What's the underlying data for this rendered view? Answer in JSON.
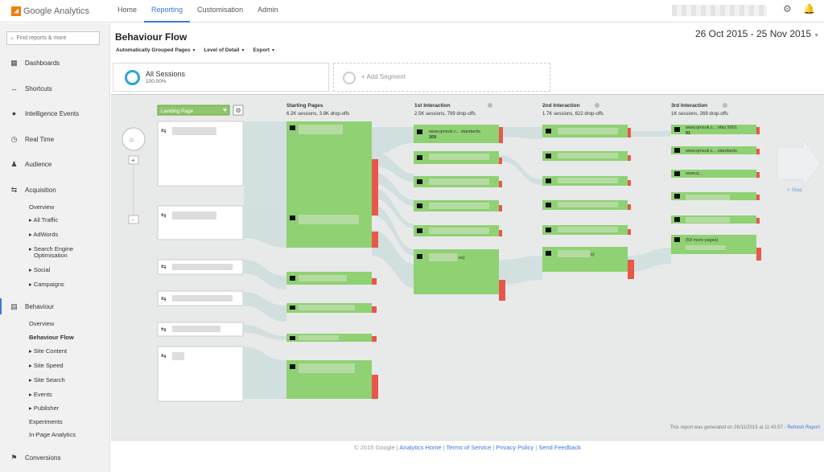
{
  "app": {
    "name": "Google Analytics"
  },
  "topnav": [
    "Home",
    "Reporting",
    "Customisation",
    "Admin"
  ],
  "topnav_active": "Reporting",
  "search": {
    "placeholder": "Find reports & more"
  },
  "sidebar": {
    "main_items": [
      {
        "label": "Dashboards",
        "icon": "grid-icon"
      },
      {
        "label": "Shortcuts",
        "icon": "shortcut-icon"
      },
      {
        "label": "Intelligence Events",
        "icon": "bulb-icon"
      },
      {
        "label": "Real Time",
        "icon": "clock-icon"
      },
      {
        "label": "Audience",
        "icon": "people-icon"
      },
      {
        "label": "Acquisition",
        "icon": "acquisition-icon"
      }
    ],
    "acquisition_sub": [
      "Overview",
      "▸ All Traffic",
      "▸ AdWords",
      "▸ Search Engine",
      "Optimisation",
      "▸ Social",
      "▸ Campaigns"
    ],
    "behaviour": {
      "label": "Behaviour",
      "icon": "behaviour-icon"
    },
    "behaviour_sub": [
      "Overview",
      "Behaviour Flow",
      "▸ Site Content",
      "▸ Site Speed",
      "▸ Site Search",
      "▸ Events",
      "▸ Publisher",
      "Experiments",
      "In-Page Analytics"
    ],
    "conversions": {
      "label": "Conversions",
      "icon": "flag-icon"
    }
  },
  "page": {
    "title": "Behaviour Flow",
    "date_range": "26 Oct 2015 - 25 Nov 2015"
  },
  "toolbar": {
    "grouping": "Automatically Grouped Pages",
    "detail": "Level of Detail",
    "export": "Export"
  },
  "segment": {
    "name": "All Sessions",
    "percent": "100.00%",
    "add_label": "+ Add Segment"
  },
  "flow": {
    "dimension_select": "Landing Page",
    "add_step": "+ Step",
    "columns": [
      {
        "title": "Starting Pages",
        "stats": "6.2K sessions, 3.8K drop-offs"
      },
      {
        "title": "1st Interaction",
        "stats": "2.5K sessions, 799 drop-offs"
      },
      {
        "title": "2nd Interaction",
        "stats": "1.7K sessions, 622 drop-offs"
      },
      {
        "title": "3rd Interaction",
        "stats": "1K sessions, 269 drop-offs"
      }
    ],
    "node_texts": {
      "first_top_url": "www.qmsuk.c... standards",
      "first_top_count": "269",
      "first_more": "es)",
      "second_more": "s)",
      "third_urls": [
        "www.qmsuk.c... ofas 9001",
        "www.qmsuk.c... standards",
        "www.q..."
      ],
      "third_counts": [
        "91"
      ],
      "third_more": "(59 more pages)"
    }
  },
  "footer": {
    "generated": "This report was generated on 26/11/2015 at 11:43:57 - ",
    "refresh": "Refresh Report",
    "copyright": "© 2015 Google | ",
    "links": [
      "Analytics Home",
      "Terms of Service",
      "Privacy Policy",
      "Send Feedback"
    ]
  },
  "colors": {
    "accent": "#3c78d8",
    "node_green": "#8fd173",
    "dropoff_red": "#e8574a",
    "flow_band": "#cfdede"
  }
}
